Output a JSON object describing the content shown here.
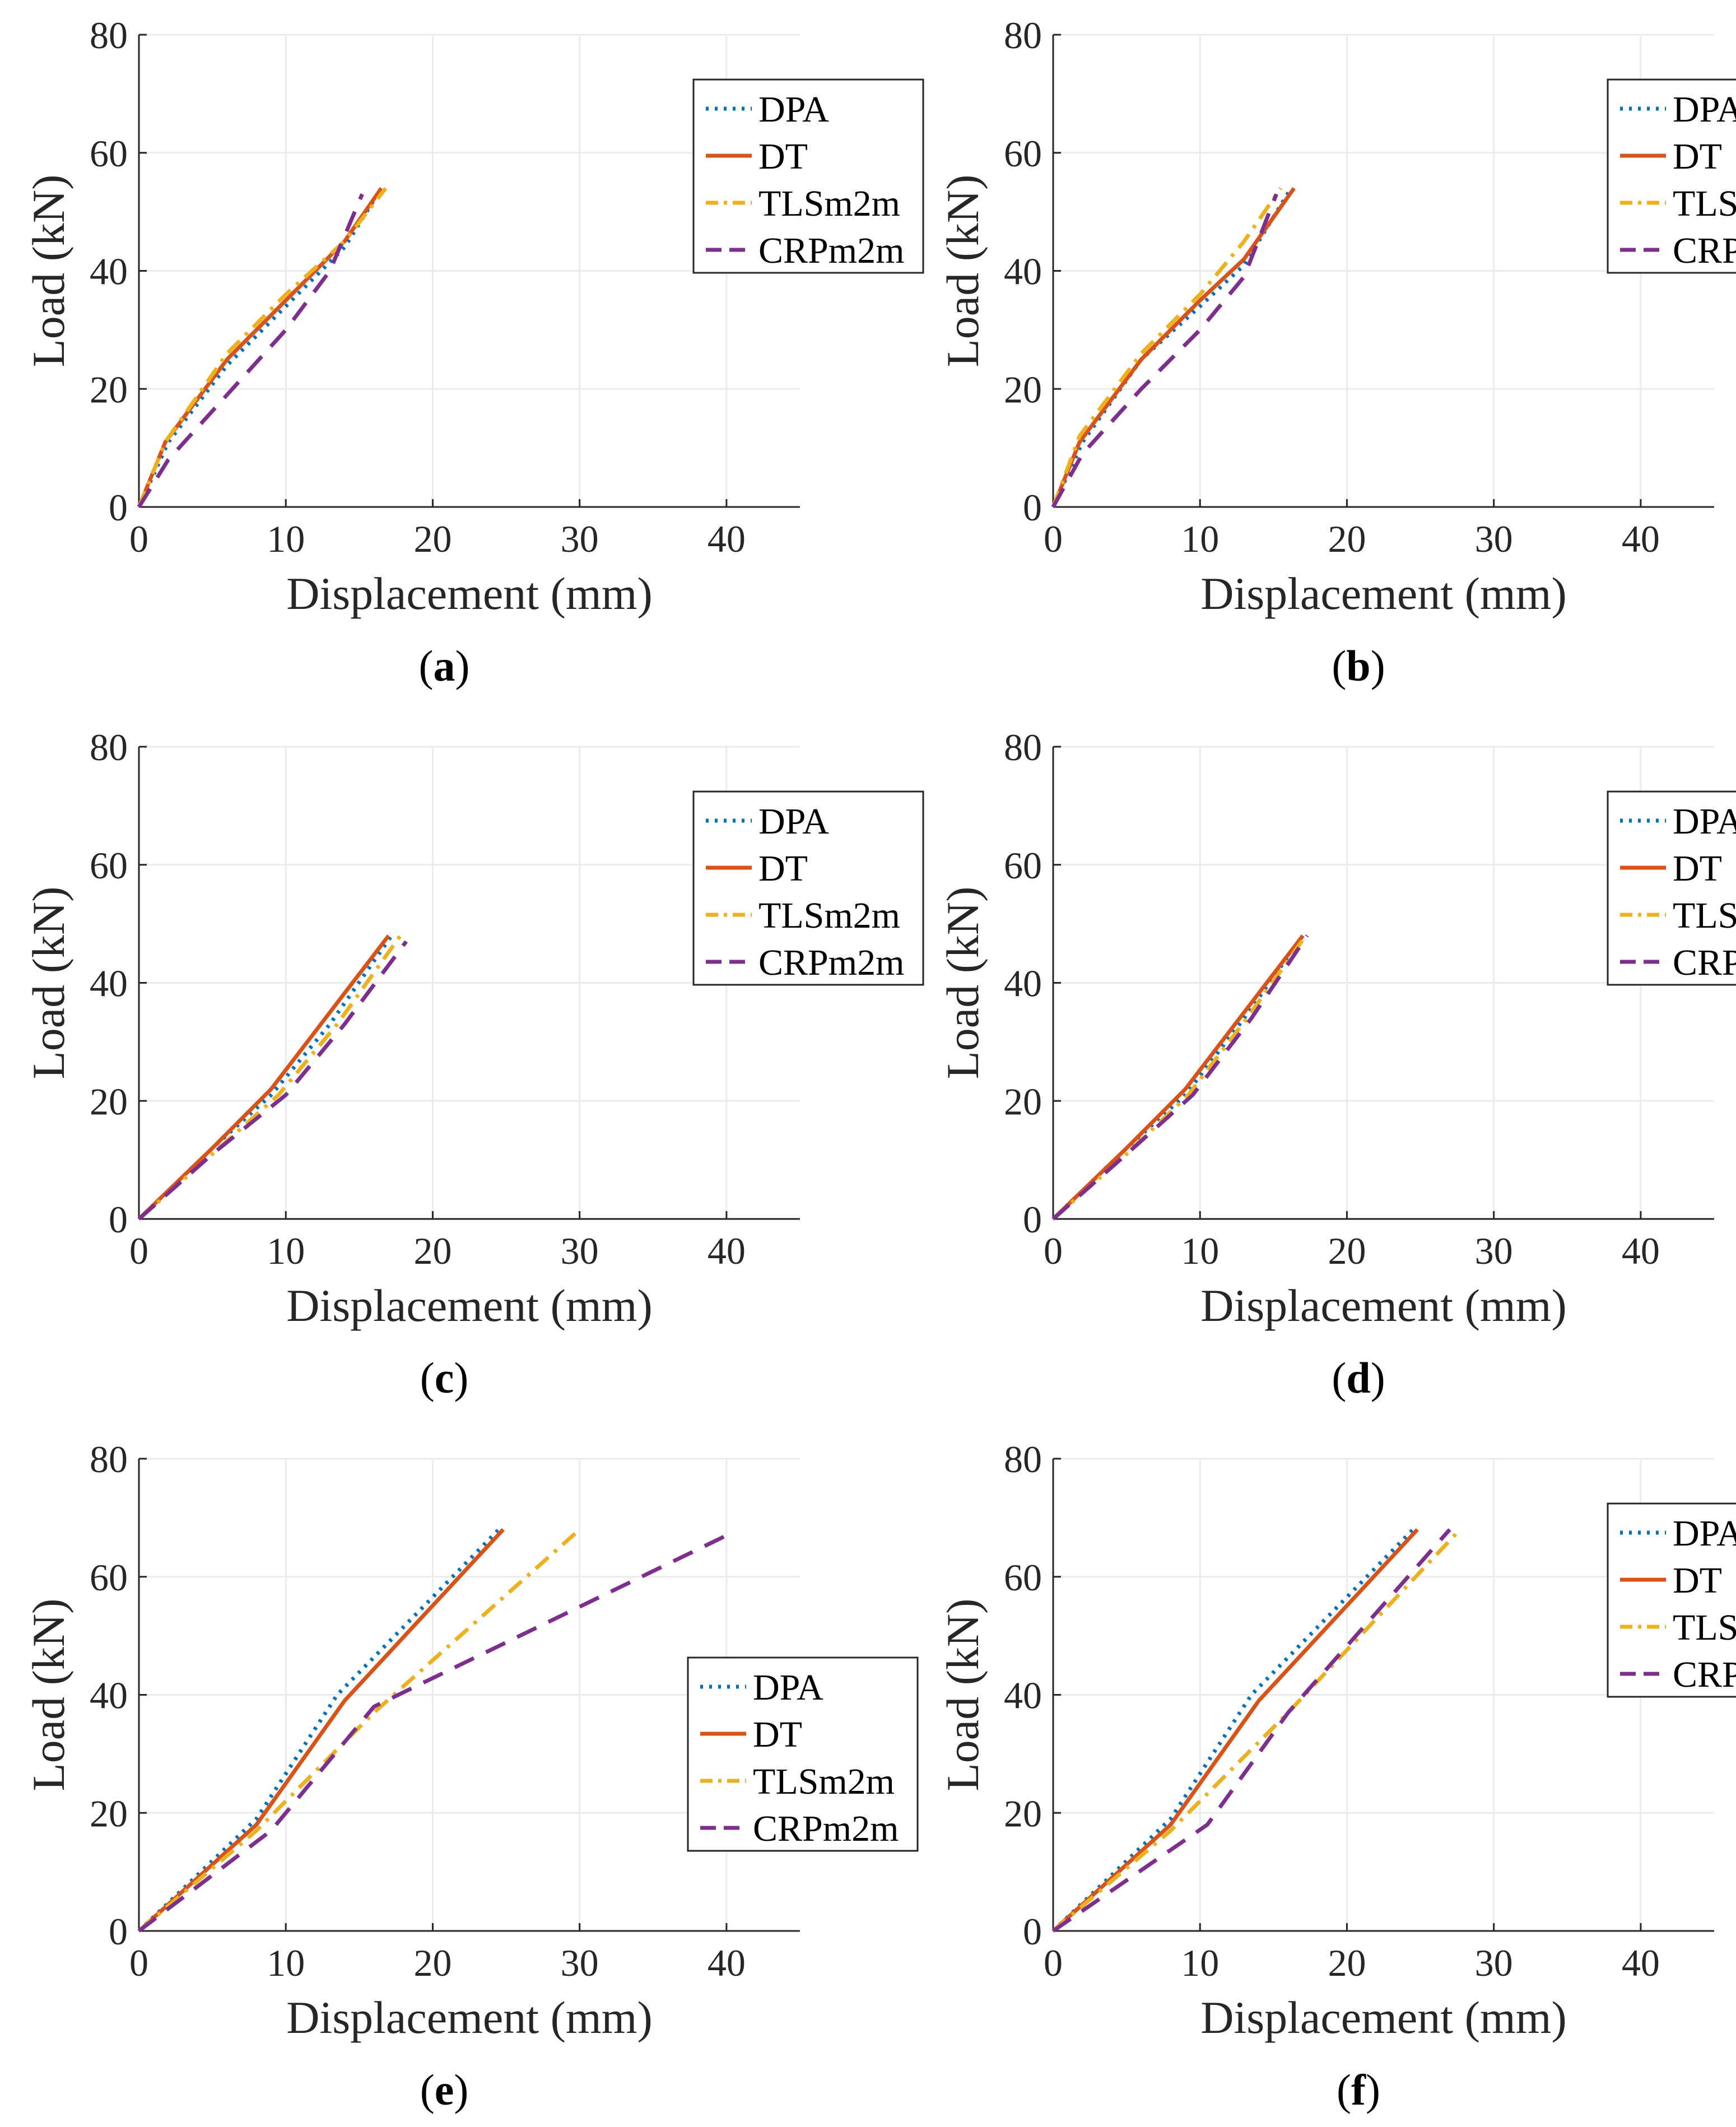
{
  "colors": {
    "DPA": "#0072BD",
    "DT": "#D95319",
    "TLS": "#EDB120",
    "CRP": "#7E2F8E",
    "axis": "#262626",
    "grid": "#ebebeb"
  },
  "chart_data": [
    {
      "type": "line",
      "panel": "a",
      "caption": {
        "open": "(",
        "letter": "a",
        "close": ")"
      },
      "xlabel": "Displacement (mm)",
      "ylabel": "Load (kN)",
      "xlim": [
        0,
        45
      ],
      "ylim": [
        0,
        80
      ],
      "xticks": [
        0,
        10,
        20,
        30,
        40
      ],
      "yticks": [
        0,
        20,
        40,
        60,
        80
      ],
      "grid": true,
      "legend_position": "top-right",
      "series": [
        {
          "name": "DPA",
          "style": "dotted",
          "color_key": "DPA",
          "x": [
            0,
            2,
            6,
            10,
            14,
            16.5
          ],
          "y": [
            0,
            11,
            24,
            34,
            44,
            54
          ]
        },
        {
          "name": "DT",
          "style": "solid",
          "color_key": "DT",
          "x": [
            0,
            1.8,
            6,
            10,
            14,
            16.5
          ],
          "y": [
            0,
            11,
            25,
            35,
            45,
            54
          ]
        },
        {
          "name": "TLSm2m",
          "style": "dashdot",
          "color_key": "TLS",
          "x": [
            0,
            1.8,
            6,
            10,
            14,
            16.8
          ],
          "y": [
            0,
            11,
            26,
            36,
            45,
            54
          ]
        },
        {
          "name": "CRPm2m",
          "style": "dashed",
          "color_key": "CRP",
          "x": [
            0,
            2,
            6,
            10,
            13,
            15.2
          ],
          "y": [
            0,
            8,
            19,
            30,
            40,
            53
          ]
        }
      ]
    },
    {
      "type": "line",
      "panel": "b",
      "caption": {
        "open": "(",
        "letter": "b",
        "close": ")"
      },
      "xlabel": "Displacement (mm)",
      "ylabel": "Load (kN)",
      "xlim": [
        0,
        45
      ],
      "ylim": [
        0,
        80
      ],
      "xticks": [
        0,
        10,
        20,
        30,
        40
      ],
      "yticks": [
        0,
        20,
        40,
        60,
        80
      ],
      "grid": true,
      "legend_position": "top-right",
      "series": [
        {
          "name": "DPA",
          "style": "dotted",
          "color_key": "DPA",
          "x": [
            0,
            2,
            6,
            10,
            13,
            16.2
          ],
          "y": [
            0,
            11,
            25,
            34,
            41,
            54
          ]
        },
        {
          "name": "DT",
          "style": "solid",
          "color_key": "DT",
          "x": [
            0,
            1.8,
            6,
            10,
            13,
            16.4
          ],
          "y": [
            0,
            11,
            25,
            35,
            42,
            54
          ]
        },
        {
          "name": "TLSm",
          "style": "dashdot",
          "color_key": "TLS",
          "x": [
            0,
            1.8,
            6,
            10,
            13,
            15.5
          ],
          "y": [
            0,
            12,
            26,
            36,
            45,
            54
          ]
        },
        {
          "name": "CRPm",
          "style": "dashed",
          "color_key": "CRP",
          "x": [
            0,
            2,
            6,
            10,
            13,
            15.2
          ],
          "y": [
            0,
            9,
            20,
            30,
            39,
            53
          ]
        }
      ]
    },
    {
      "type": "line",
      "panel": "c",
      "caption": {
        "open": "(",
        "letter": "c",
        "close": ")"
      },
      "xlabel": "Displacement (mm)",
      "ylabel": "Load (kN)",
      "xlim": [
        0,
        45
      ],
      "ylim": [
        0,
        80
      ],
      "xticks": [
        0,
        10,
        20,
        30,
        40
      ],
      "yticks": [
        0,
        20,
        40,
        60,
        80
      ],
      "grid": true,
      "legend_position": "top-right",
      "series": [
        {
          "name": "DPA",
          "style": "dotted",
          "color_key": "DPA",
          "x": [
            0,
            5,
            9,
            13,
            17.2
          ],
          "y": [
            0,
            12,
            21,
            33,
            48
          ]
        },
        {
          "name": "DT",
          "style": "solid",
          "color_key": "DT",
          "x": [
            0,
            5,
            9,
            13,
            17
          ],
          "y": [
            0,
            12,
            22,
            35,
            48
          ]
        },
        {
          "name": "TLSm2m",
          "style": "dashdot",
          "color_key": "TLS",
          "x": [
            0,
            5,
            9.5,
            13.5,
            17.8
          ],
          "y": [
            0,
            11,
            21,
            33,
            48
          ]
        },
        {
          "name": "CRPm2m",
          "style": "dashed",
          "color_key": "CRP",
          "x": [
            0,
            5,
            10,
            14,
            18.2
          ],
          "y": [
            0,
            11,
            21,
            33,
            47
          ]
        }
      ]
    },
    {
      "type": "line",
      "panel": "d",
      "caption": {
        "open": "(",
        "letter": "d",
        "close": ")"
      },
      "xlabel": "Displacement (mm)",
      "ylabel": "Load (kN)",
      "xlim": [
        0,
        45
      ],
      "ylim": [
        0,
        80
      ],
      "xticks": [
        0,
        10,
        20,
        30,
        40
      ],
      "yticks": [
        0,
        20,
        40,
        60,
        80
      ],
      "grid": true,
      "legend_position": "top-right",
      "series": [
        {
          "name": "DPA",
          "style": "dotted",
          "color_key": "DPA",
          "x": [
            0,
            5,
            9,
            13,
            17
          ],
          "y": [
            0,
            12,
            21,
            34,
            48
          ]
        },
        {
          "name": "DT",
          "style": "solid",
          "color_key": "DT",
          "x": [
            0,
            5,
            9,
            13,
            17
          ],
          "y": [
            0,
            12,
            22,
            35,
            48
          ]
        },
        {
          "name": "TLSm",
          "style": "dashdot",
          "color_key": "TLS",
          "x": [
            0,
            5,
            9.2,
            13.2,
            17.2
          ],
          "y": [
            0,
            11,
            21,
            34,
            48
          ]
        },
        {
          "name": "CRPm",
          "style": "dashed",
          "color_key": "CRP",
          "x": [
            0,
            5,
            9.5,
            13.5,
            17.3
          ],
          "y": [
            0,
            11,
            21,
            34,
            48
          ]
        }
      ]
    },
    {
      "type": "line",
      "panel": "e",
      "caption": {
        "open": "(",
        "letter": "e",
        "close": ")"
      },
      "xlabel": "Displacement (mm)",
      "ylabel": "Load (kN)",
      "xlim": [
        0,
        45
      ],
      "ylim": [
        0,
        80
      ],
      "xticks": [
        0,
        10,
        20,
        30,
        40
      ],
      "yticks": [
        0,
        20,
        40,
        60,
        80
      ],
      "grid": true,
      "legend_position": "center-right",
      "series": [
        {
          "name": "DPA",
          "style": "dotted",
          "color_key": "DPA",
          "x": [
            0,
            8,
            13.5,
            24.5
          ],
          "y": [
            0,
            19,
            40,
            68
          ]
        },
        {
          "name": "DT",
          "style": "solid",
          "color_key": "DT",
          "x": [
            0,
            8,
            14,
            24.8
          ],
          "y": [
            0,
            18,
            39,
            68
          ]
        },
        {
          "name": "TLSm2m",
          "style": "dashdot",
          "color_key": "TLS",
          "x": [
            0,
            8,
            16,
            30
          ],
          "y": [
            0,
            17,
            37,
            68
          ]
        },
        {
          "name": "CRPm2m",
          "style": "dashed",
          "color_key": "CRP",
          "x": [
            0,
            9,
            16,
            40
          ],
          "y": [
            0,
            17,
            38,
            67
          ]
        }
      ]
    },
    {
      "type": "line",
      "panel": "f",
      "caption": {
        "open": "(",
        "letter": "f",
        "close": ")"
      },
      "xlabel": "Displacement (mm)",
      "ylabel": "Load (kN)",
      "xlim": [
        0,
        45
      ],
      "ylim": [
        0,
        80
      ],
      "xticks": [
        0,
        10,
        20,
        30,
        40
      ],
      "yticks": [
        0,
        20,
        40,
        60,
        80
      ],
      "grid": true,
      "legend_position": "top-right",
      "series": [
        {
          "name": "DPA",
          "style": "dotted",
          "color_key": "DPA",
          "x": [
            0,
            8,
            13.5,
            24.5
          ],
          "y": [
            0,
            19,
            40,
            68
          ]
        },
        {
          "name": "DT",
          "style": "solid",
          "color_key": "DT",
          "x": [
            0,
            8,
            14,
            24.8
          ],
          "y": [
            0,
            18,
            39,
            68
          ]
        },
        {
          "name": "TLSm",
          "style": "dashdot",
          "color_key": "TLS",
          "x": [
            0,
            8,
            16,
            27.7
          ],
          "y": [
            0,
            17,
            37,
            68
          ]
        },
        {
          "name": "CRPm",
          "style": "dashed",
          "color_key": "CRP",
          "x": [
            0,
            10.5,
            16,
            27
          ],
          "y": [
            0,
            18,
            37,
            68
          ]
        }
      ]
    }
  ]
}
